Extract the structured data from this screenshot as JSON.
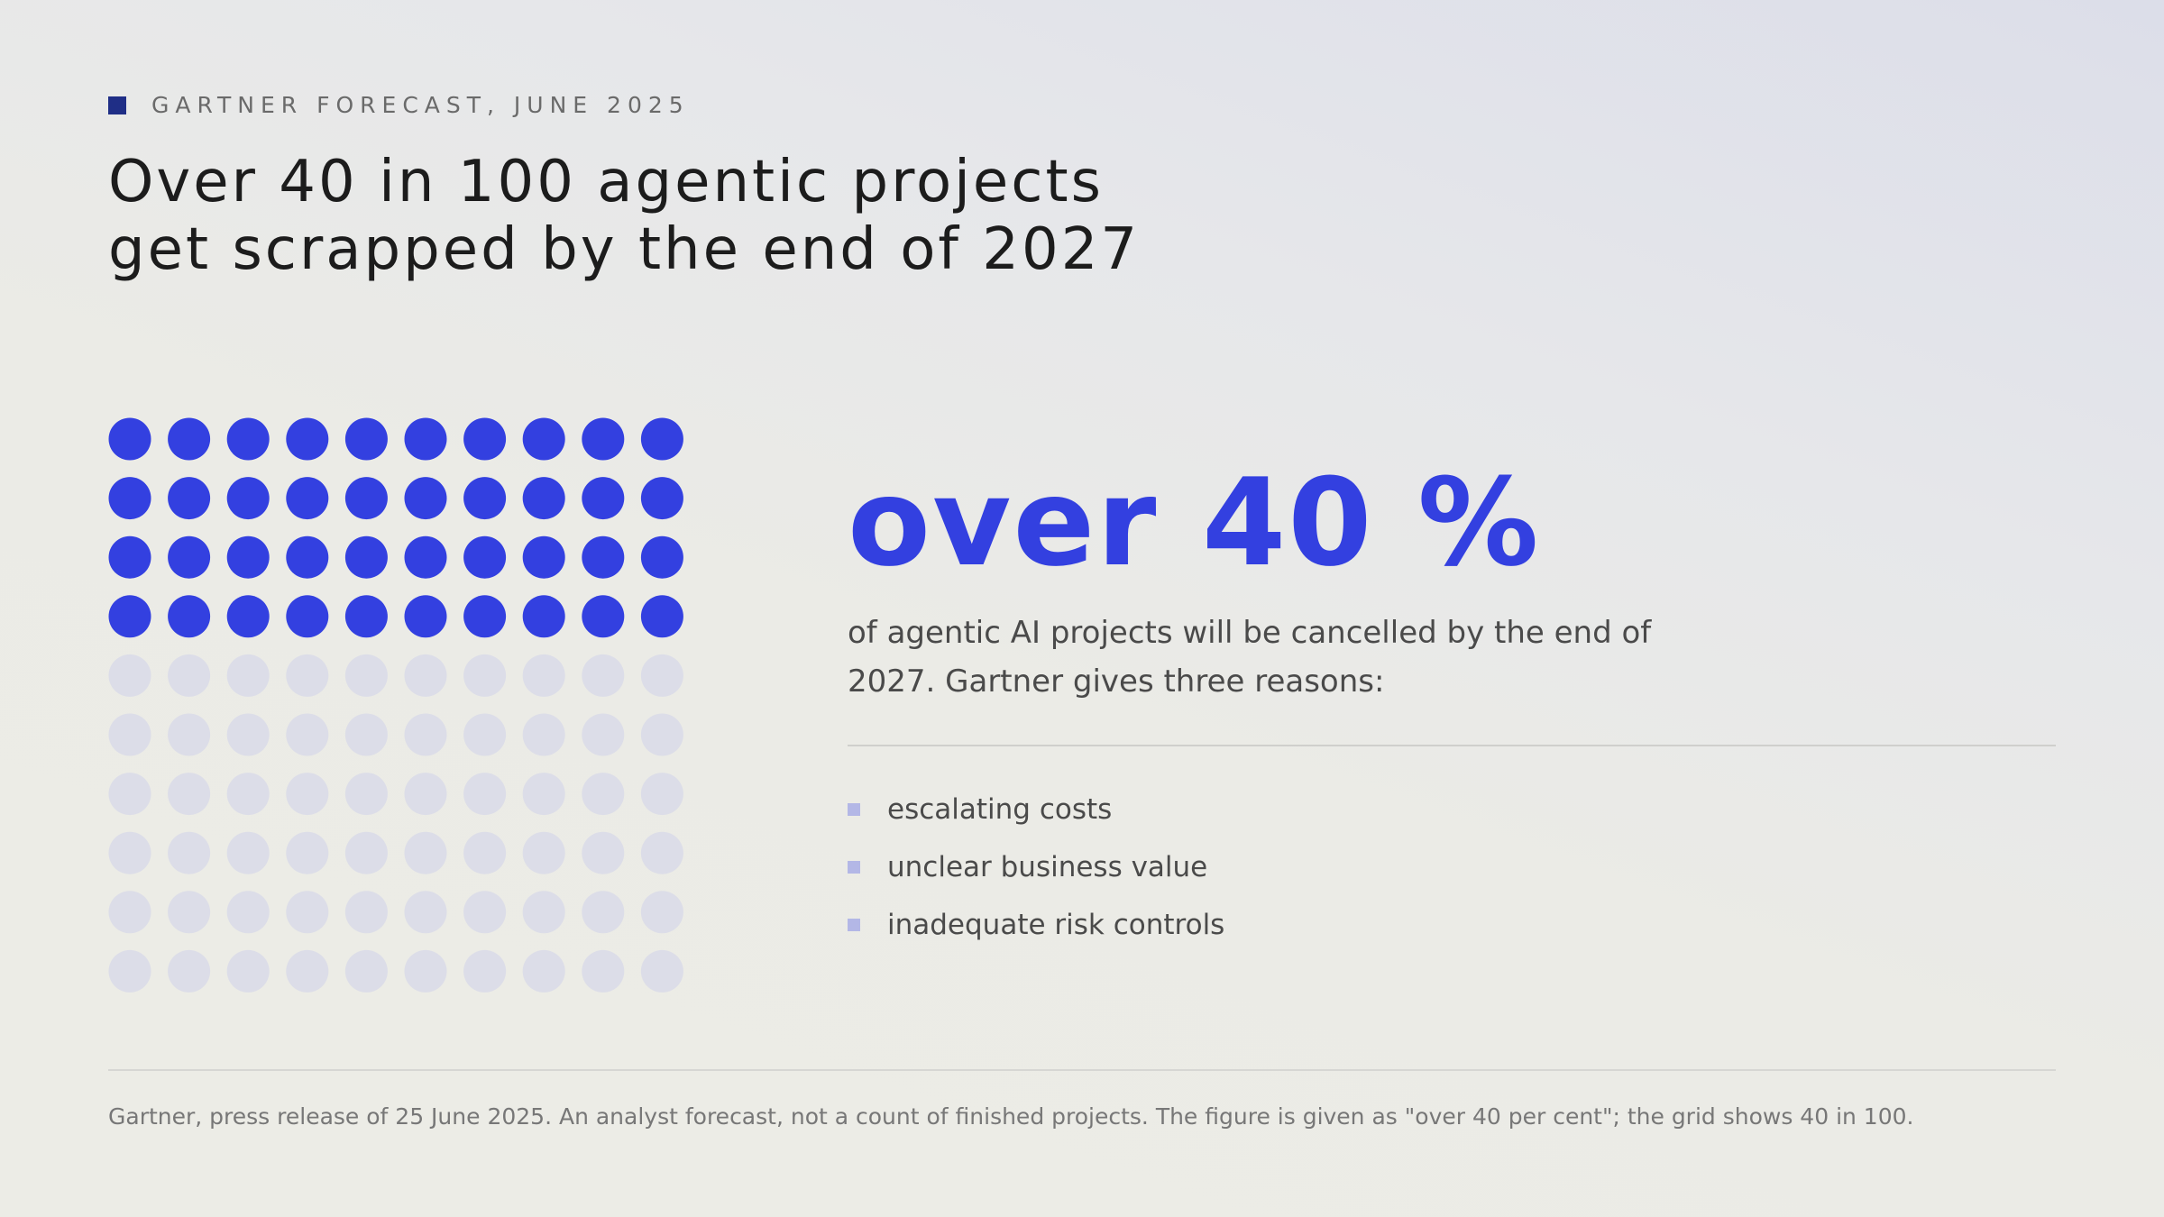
{
  "kicker": "GARTNER FORECAST, JUNE 2025",
  "title_line1": "Over 40 in 100 agentic projects",
  "title_line2": "get scrapped by the end of 2027",
  "headline_value": "over 40 %",
  "description_line1": "of agentic AI projects will be cancelled by the end of",
  "description_line2": "2027. Gartner gives three reasons:",
  "reasons": [
    "escalating costs",
    "unclear business value",
    "inadequate risk controls"
  ],
  "footnote": "Gartner, press release of 25 June 2025. An analyst forecast, not a count of finished projects. The figure is given as \"over 40 per cent\"; the grid shows 40 in 100.",
  "colors": {
    "highlight": "#3340e0",
    "muted": "#dcdde8",
    "kicker_square": "#1f2e86",
    "bullet": "#b3b7e6"
  },
  "chart_data": {
    "type": "waffle",
    "rows": 10,
    "columns": 10,
    "total": 100,
    "highlighted": 40,
    "fill_order": "row-major from top-left"
  }
}
